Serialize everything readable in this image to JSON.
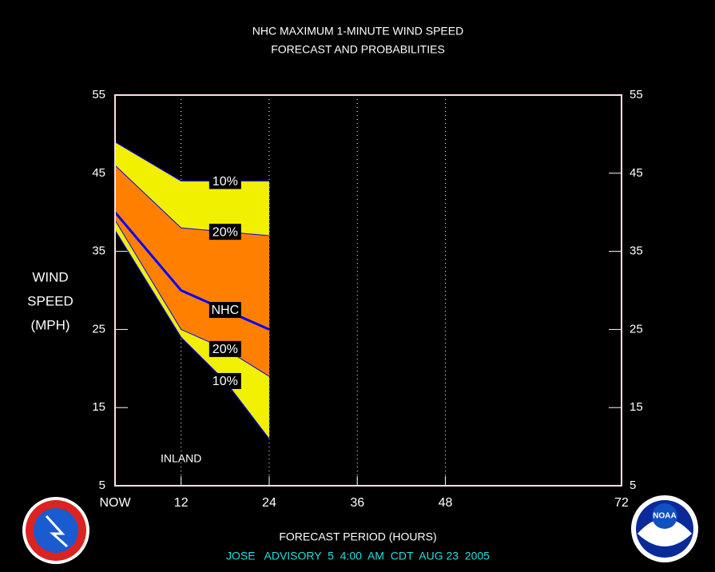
{
  "chart_data": {
    "type": "line",
    "title": "NHC MAXIMUM 1-MINUTE WIND SPEED",
    "subtitle": "FORECAST AND PROBABILITIES",
    "y_label": [
      "WIND",
      "SPEED",
      "(MPH)"
    ],
    "x_label": "FORECAST PERIOD (HOURS)",
    "footer": "JOSE   ADVISORY  5  4:00  AM  CDT  AUG 23  2005",
    "annotation": {
      "text": "INLAND",
      "x": 12
    },
    "x": [
      3,
      12,
      18,
      24
    ],
    "series": [
      {
        "name": "10%",
        "color": "#f0f000",
        "values": [
          49,
          44,
          44,
          44
        ]
      },
      {
        "name": "20%",
        "color": "#ff8000",
        "values": [
          46,
          38,
          37.5,
          37
        ]
      },
      {
        "name": "NHC",
        "color": "#0000ff",
        "values": [
          40,
          30,
          27.5,
          25
        ]
      },
      {
        "name": "20%",
        "color": "#ff8000",
        "values": [
          39,
          25,
          22.5,
          19
        ]
      },
      {
        "name": "10%",
        "color": "#f0f000",
        "values": [
          37.7,
          24,
          18.4,
          11
        ]
      }
    ],
    "xlim": [
      3,
      72
    ],
    "xticks": [
      {
        "value": 3,
        "label": "NOW"
      },
      12,
      24,
      36,
      48,
      72
    ],
    "ylim": [
      5,
      55
    ],
    "yticks": [
      5,
      15,
      25,
      35,
      45,
      55
    ],
    "grid": true
  }
}
